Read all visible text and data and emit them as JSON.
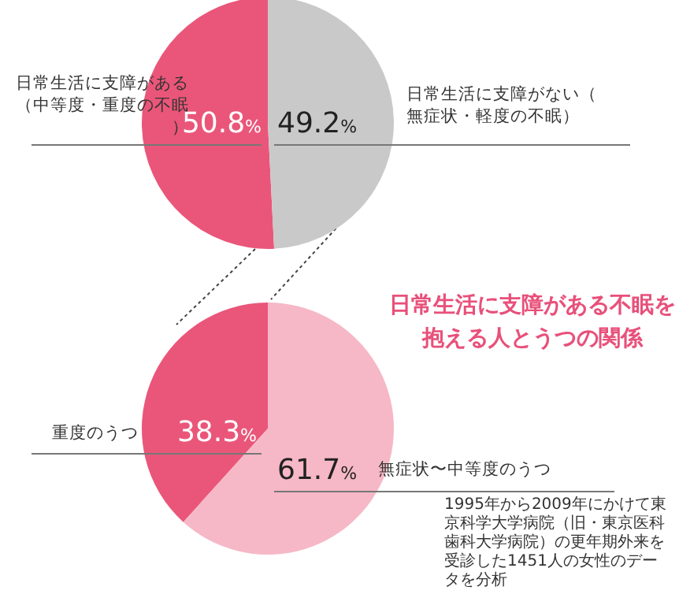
{
  "chart_data": [
    {
      "type": "pie",
      "categories": [
        "日常生活に支障がある（中等度・重度の不眠）",
        "日常生活に支障がない（無症状・軽度の不眠）"
      ],
      "values": [
        50.8,
        49.2
      ],
      "colors": [
        "#ea5679",
        "#c9c9c9"
      ],
      "value_labels": [
        "50.8%",
        "49.2%"
      ]
    },
    {
      "type": "pie",
      "title": "日常生活に支障がある不眠を抱える人とうつの関係",
      "categories": [
        "重度のうつ",
        "無症状〜中等度のうつ"
      ],
      "values": [
        38.3,
        61.7
      ],
      "colors": [
        "#ea5679",
        "#f6b8c6"
      ],
      "value_labels": [
        "38.3%",
        "61.7%"
      ],
      "annotations": [
        "1995年から2009年にかけて東京科学大学病院（旧・東京医科歯科大学病院）の更年期外来を受診した1451人の女性のデータを分析"
      ]
    }
  ]
}
